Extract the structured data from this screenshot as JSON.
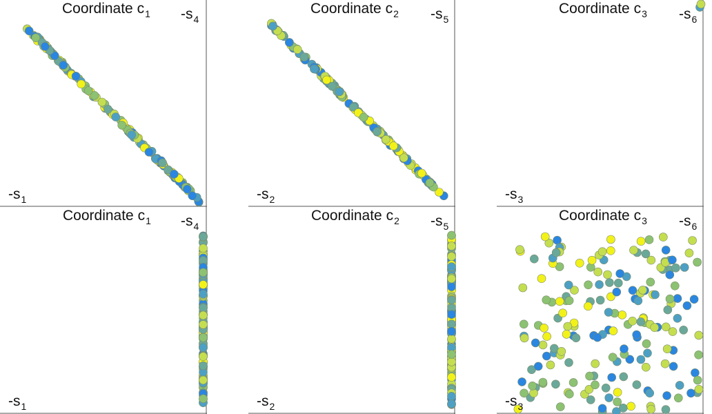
{
  "colors": {
    "axis": "#555555",
    "palette": [
      "#2a86e0",
      "#4da0c4",
      "#6aa89a",
      "#8cc272",
      "#c4de50",
      "#f2f21a"
    ]
  },
  "chart_data": [
    {
      "type": "scatter",
      "panel": "top-left",
      "title": {
        "text": "Coordinate c",
        "sub": "1"
      },
      "corner_top": {
        "text": "-s",
        "sub": "4"
      },
      "corner_bottom": {
        "text": "-s",
        "sub": "1"
      },
      "xlim": [
        0,
        1
      ],
      "ylim": [
        0,
        1
      ],
      "pattern": "anti-diagonal",
      "points": 140,
      "x_range": [
        0.12,
        0.98
      ],
      "spread": 0.01
    },
    {
      "type": "scatter",
      "panel": "top-middle",
      "title": {
        "text": "Coordinate c",
        "sub": "2"
      },
      "corner_top": {
        "text": "-s",
        "sub": "5"
      },
      "corner_bottom": {
        "text": "-s",
        "sub": "2"
      },
      "xlim": [
        0,
        1
      ],
      "ylim": [
        0,
        1
      ],
      "pattern": "anti-diagonal",
      "points": 140,
      "x_range": [
        0.1,
        0.96
      ],
      "spread": 0.01
    },
    {
      "type": "scatter",
      "panel": "top-right",
      "title": {
        "text": "Coordinate c",
        "sub": "3"
      },
      "corner_top": {
        "text": "-s",
        "sub": "6"
      },
      "corner_bottom": {
        "text": "-s",
        "sub": "3"
      },
      "xlim": [
        0,
        1
      ],
      "ylim": [
        0,
        1
      ],
      "pattern": "corner",
      "points": [
        [
          0.995,
          0.985
        ],
        [
          1.0,
          1.0
        ]
      ]
    },
    {
      "type": "scatter",
      "panel": "bottom-left",
      "title": {
        "text": "Coordinate c",
        "sub": "1"
      },
      "corner_top": {
        "text": "-s",
        "sub": "4"
      },
      "corner_bottom": {
        "text": "-s",
        "sub": "1"
      },
      "xlim": [
        0,
        1
      ],
      "ylim": [
        0,
        1
      ],
      "pattern": "vertical-line",
      "x": 0.995,
      "points": 130,
      "y_range": [
        0.04,
        0.88
      ]
    },
    {
      "type": "scatter",
      "panel": "bottom-middle",
      "title": {
        "text": "Coordinate c",
        "sub": "2"
      },
      "corner_top": {
        "text": "-s",
        "sub": "5"
      },
      "corner_bottom": {
        "text": "-s",
        "sub": "2"
      },
      "xlim": [
        0,
        1
      ],
      "ylim": [
        0,
        1
      ],
      "pattern": "vertical-line",
      "x": 0.995,
      "points": 130,
      "y_range": [
        0.04,
        0.88
      ]
    },
    {
      "type": "scatter",
      "panel": "bottom-right",
      "title": {
        "text": "Coordinate c",
        "sub": "3"
      },
      "corner_top": {
        "text": "-s",
        "sub": "6"
      },
      "corner_bottom": {
        "text": "-s",
        "sub": "3"
      },
      "xlim": [
        0,
        1
      ],
      "ylim": [
        0,
        1
      ],
      "pattern": "uniform",
      "points": 190,
      "x_range": [
        0.09,
        0.99
      ],
      "y_range": [
        0.0,
        0.88
      ]
    }
  ]
}
